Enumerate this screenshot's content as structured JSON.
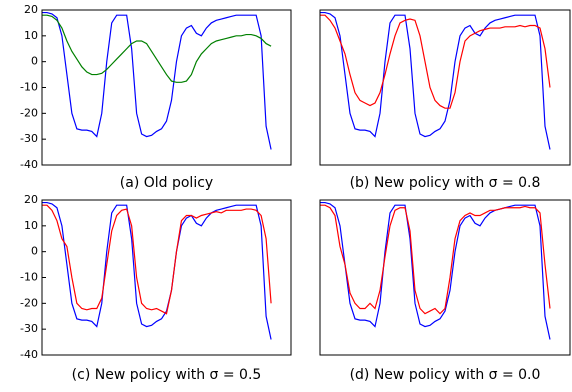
{
  "chart_data": [
    {
      "type": "line",
      "caption": "(a) Old policy",
      "x": [
        0,
        2,
        4,
        6,
        8,
        10,
        12,
        14,
        16,
        18,
        20,
        22,
        24,
        26,
        28,
        30,
        32,
        34,
        36,
        38,
        40,
        42,
        44,
        46,
        48,
        50,
        52,
        54,
        56,
        58,
        60,
        62,
        64,
        66,
        68,
        70,
        72,
        74,
        76,
        78,
        80,
        82,
        84,
        86,
        88,
        90,
        92
      ],
      "xlim": [
        0,
        100
      ],
      "ylim": [
        -40,
        20
      ],
      "yticks": [
        -40,
        -30,
        -20,
        -10,
        0,
        10,
        20
      ],
      "series": [
        {
          "color": "#0000ff",
          "values": [
            19,
            19,
            18.5,
            17,
            10,
            -5,
            -20,
            -26,
            -26.5,
            -26.5,
            -27,
            -29,
            -20,
            0,
            15,
            18,
            18,
            18,
            5,
            -20,
            -28,
            -29,
            -28.5,
            -27,
            -26,
            -23,
            -15,
            0,
            10,
            13,
            14,
            11,
            10,
            13,
            15,
            16,
            16.5,
            17,
            17.5,
            18,
            18,
            18,
            18,
            18,
            10,
            -25,
            -34
          ]
        },
        {
          "color": "#008000",
          "values": [
            18,
            18,
            17.5,
            16,
            13,
            8,
            4,
            1,
            -2,
            -4,
            -5,
            -5,
            -4.5,
            -3,
            -1,
            1,
            3,
            5,
            7,
            8,
            8,
            7,
            4,
            1,
            -2,
            -5,
            -7.5,
            -8,
            -8,
            -7.5,
            -5,
            0,
            3,
            5,
            7,
            8,
            8.5,
            9,
            9.5,
            10,
            10,
            10.5,
            10.5,
            10,
            9,
            7,
            6
          ]
        }
      ]
    },
    {
      "type": "line",
      "caption": "(b) New policy with σ = 0.8",
      "x": [
        0,
        2,
        4,
        6,
        8,
        10,
        12,
        14,
        16,
        18,
        20,
        22,
        24,
        26,
        28,
        30,
        32,
        34,
        36,
        38,
        40,
        42,
        44,
        46,
        48,
        50,
        52,
        54,
        56,
        58,
        60,
        62,
        64,
        66,
        68,
        70,
        72,
        74,
        76,
        78,
        80,
        82,
        84,
        86,
        88,
        90,
        92
      ],
      "xlim": [
        0,
        100
      ],
      "ylim": [
        -40,
        20
      ],
      "series": [
        {
          "color": "#0000ff",
          "values": [
            19,
            19,
            18.5,
            17,
            10,
            -5,
            -20,
            -26,
            -26.5,
            -26.5,
            -27,
            -29,
            -20,
            0,
            15,
            18,
            18,
            18,
            5,
            -20,
            -28,
            -29,
            -28.5,
            -27,
            -26,
            -23,
            -15,
            0,
            10,
            13,
            14,
            11,
            10,
            13,
            15,
            16,
            16.5,
            17,
            17.5,
            18,
            18,
            18,
            18,
            18,
            10,
            -25,
            -34
          ]
        },
        {
          "color": "#ff0000",
          "values": [
            18,
            18,
            16,
            13,
            8,
            3,
            -5,
            -12,
            -15,
            -16,
            -17,
            -16,
            -12,
            -5,
            3,
            10,
            15,
            16,
            16.5,
            16,
            10,
            0,
            -10,
            -15,
            -17,
            -18,
            -18,
            -12,
            0,
            8,
            10,
            11,
            12,
            12.5,
            13,
            13,
            13,
            13.5,
            13.5,
            13.5,
            14,
            13.5,
            14,
            14,
            13,
            5,
            -10
          ]
        }
      ]
    },
    {
      "type": "line",
      "caption": "(c) New policy with σ = 0.5",
      "x": [
        0,
        2,
        4,
        6,
        8,
        10,
        12,
        14,
        16,
        18,
        20,
        22,
        24,
        26,
        28,
        30,
        32,
        34,
        36,
        38,
        40,
        42,
        44,
        46,
        48,
        50,
        52,
        54,
        56,
        58,
        60,
        62,
        64,
        66,
        68,
        70,
        72,
        74,
        76,
        78,
        80,
        82,
        84,
        86,
        88,
        90,
        92
      ],
      "xlim": [
        0,
        100
      ],
      "ylim": [
        -40,
        20
      ],
      "yticks": [
        -40,
        -30,
        -20,
        -10,
        0,
        10,
        20
      ],
      "series": [
        {
          "color": "#0000ff",
          "values": [
            19,
            19,
            18.5,
            17,
            10,
            -5,
            -20,
            -26,
            -26.5,
            -26.5,
            -27,
            -29,
            -20,
            0,
            15,
            18,
            18,
            18,
            5,
            -20,
            -28,
            -29,
            -28.5,
            -27,
            -26,
            -23,
            -15,
            0,
            10,
            13,
            14,
            11,
            10,
            13,
            15,
            16,
            16.5,
            17,
            17.5,
            18,
            18,
            18,
            18,
            18,
            10,
            -25,
            -34
          ]
        },
        {
          "color": "#ff0000",
          "values": [
            18,
            18,
            16,
            12,
            5,
            2,
            -10,
            -20,
            -22,
            -22.5,
            -22,
            -22,
            -18,
            -5,
            8,
            14,
            16,
            16.5,
            10,
            -10,
            -20,
            -22,
            -22.5,
            -22,
            -23,
            -24,
            -15,
            0,
            12,
            14,
            14,
            13,
            14,
            14.5,
            15,
            15.5,
            15,
            16,
            16,
            16,
            16,
            16.5,
            16.5,
            16,
            14,
            5,
            -20
          ]
        }
      ]
    },
    {
      "type": "line",
      "caption": "(d) New policy with σ = 0.0",
      "x": [
        0,
        2,
        4,
        6,
        8,
        10,
        12,
        14,
        16,
        18,
        20,
        22,
        24,
        26,
        28,
        30,
        32,
        34,
        36,
        38,
        40,
        42,
        44,
        46,
        48,
        50,
        52,
        54,
        56,
        58,
        60,
        62,
        64,
        66,
        68,
        70,
        72,
        74,
        76,
        78,
        80,
        82,
        84,
        86,
        88,
        90,
        92
      ],
      "xlim": [
        0,
        100
      ],
      "ylim": [
        -40,
        20
      ],
      "series": [
        {
          "color": "#0000ff",
          "values": [
            19,
            19,
            18.5,
            17,
            10,
            -5,
            -20,
            -26,
            -26.5,
            -26.5,
            -27,
            -29,
            -20,
            0,
            15,
            18,
            18,
            18,
            5,
            -20,
            -28,
            -29,
            -28.5,
            -27,
            -26,
            -23,
            -15,
            0,
            10,
            13,
            14,
            11,
            10,
            13,
            15,
            16,
            16.5,
            17,
            17.5,
            18,
            18,
            18,
            18,
            18,
            10,
            -25,
            -34
          ]
        },
        {
          "color": "#ff0000",
          "values": [
            18,
            18,
            17,
            14,
            2,
            -5,
            -16,
            -20,
            -22,
            -22,
            -20,
            -22,
            -15,
            -2,
            10,
            16,
            17,
            17,
            8,
            -15,
            -22,
            -24,
            -23,
            -22,
            -24,
            -22,
            -10,
            5,
            12,
            14,
            15,
            14,
            14,
            15,
            16,
            16,
            16.5,
            17,
            17,
            17,
            17,
            17.5,
            17,
            17,
            15,
            -5,
            -22
          ]
        }
      ]
    }
  ]
}
